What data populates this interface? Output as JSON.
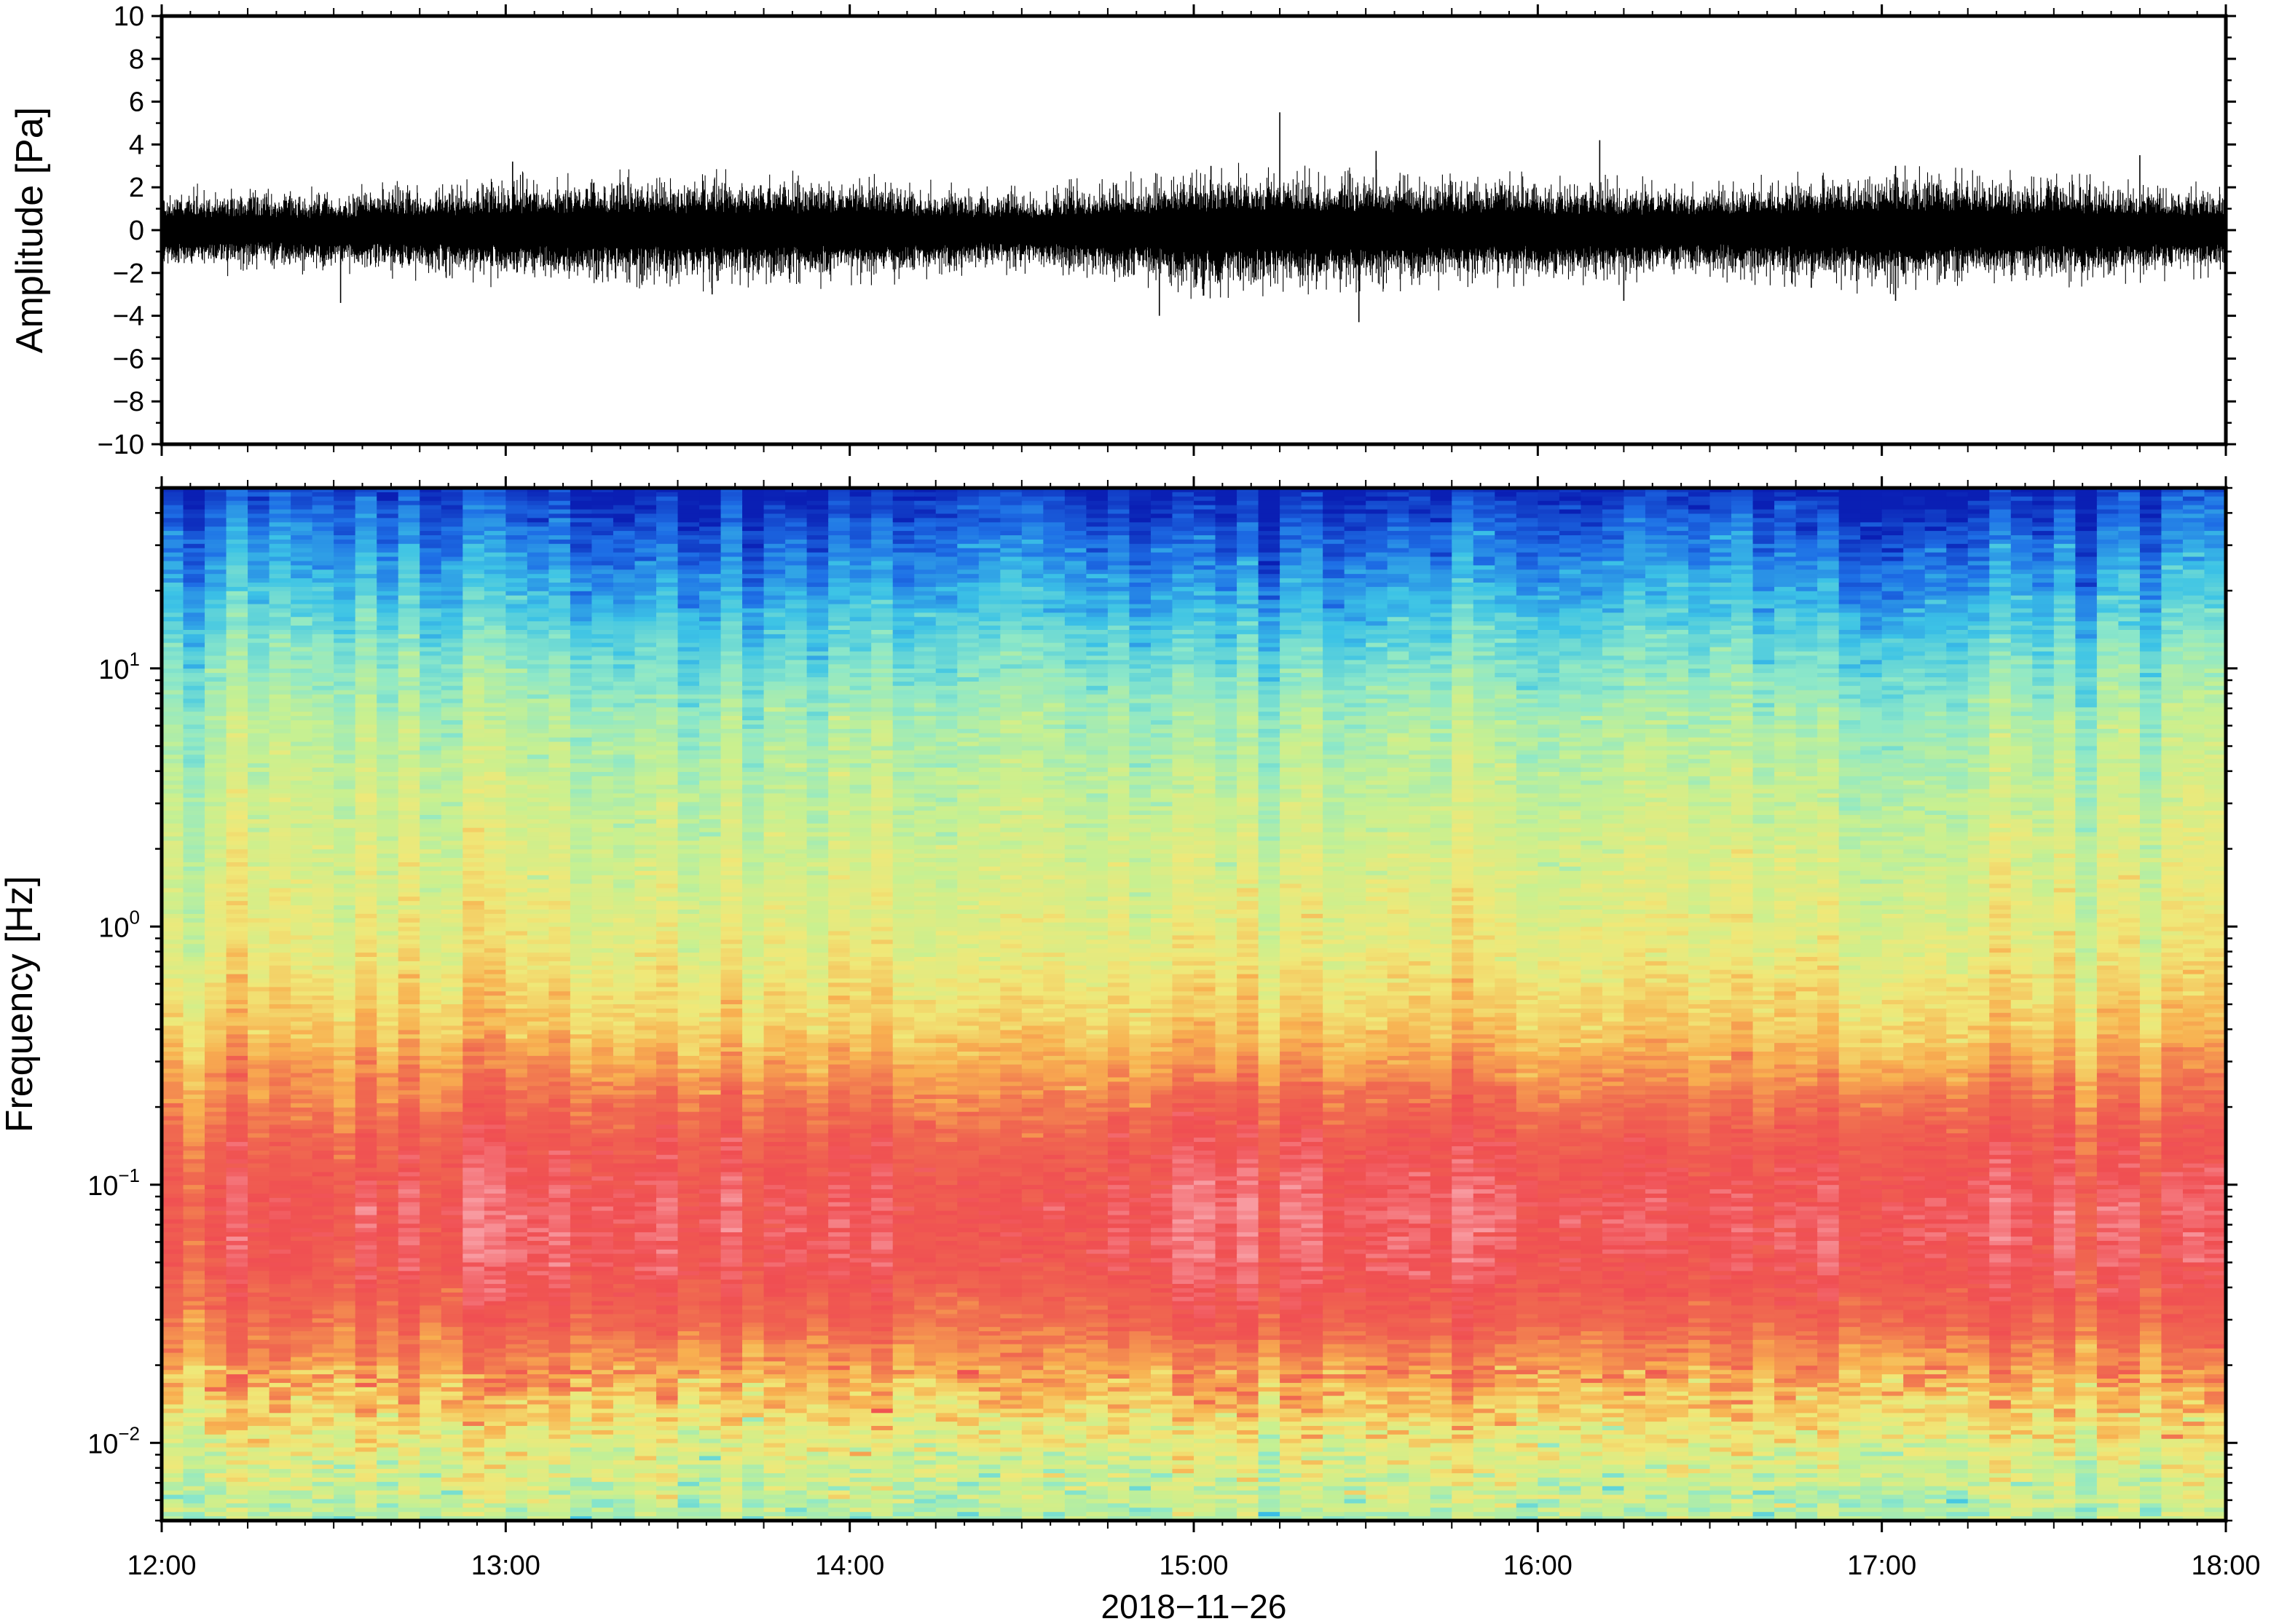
{
  "chart_data": [
    {
      "type": "line",
      "ylabel": "Amplitude [Pa]",
      "ylim": [
        -10,
        10
      ],
      "y_ticks": [
        "10",
        "8",
        "6",
        "4",
        "2",
        "0",
        "−2",
        "−4",
        "−6",
        "−8",
        "−10"
      ],
      "y_tick_values": [
        10,
        8,
        6,
        4,
        2,
        0,
        -2,
        -4,
        -6,
        -8,
        -10
      ],
      "xlim": [
        "12:00",
        "18:00"
      ],
      "series_color": "#000000",
      "envelope": {
        "x_hours": [
          12.0,
          12.5,
          13.0,
          13.5,
          14.0,
          14.5,
          15.0,
          15.5,
          16.0,
          16.5,
          17.0,
          17.5,
          18.0
        ],
        "half_range_pa": [
          1.3,
          1.2,
          1.6,
          1.7,
          1.6,
          1.2,
          1.9,
          1.7,
          1.6,
          1.4,
          1.8,
          1.6,
          1.3
        ]
      },
      "peaks": [
        {
          "x_hour": 15.25,
          "value": 5.5
        },
        {
          "x_hour": 15.48,
          "value": -4.3
        },
        {
          "x_hour": 15.53,
          "value": 3.7
        },
        {
          "x_hour": 16.18,
          "value": 4.2
        },
        {
          "x_hour": 16.25,
          "value": -3.3
        },
        {
          "x_hour": 13.02,
          "value": 3.2
        },
        {
          "x_hour": 12.52,
          "value": -3.4
        },
        {
          "x_hour": 14.9,
          "value": -4.0
        },
        {
          "x_hour": 15.05,
          "value": 3.0
        },
        {
          "x_hour": 17.04,
          "value": 3.0
        },
        {
          "x_hour": 17.04,
          "value": -3.3
        },
        {
          "x_hour": 17.75,
          "value": 3.5
        },
        {
          "x_hour": 13.6,
          "value": -3.0
        }
      ]
    },
    {
      "type": "heatmap",
      "xlabel": "2018−11−26",
      "ylabel": "Frequency [Hz]",
      "y_scale": "log",
      "ylim": [
        0.005,
        50
      ],
      "y_ticks": [
        {
          "value": 10,
          "base": "10",
          "exp": "1"
        },
        {
          "value": 1,
          "base": "10",
          "exp": "0"
        },
        {
          "value": 0.1,
          "base": "10",
          "exp": "−1"
        },
        {
          "value": 0.01,
          "base": "10",
          "exp": "−2"
        }
      ],
      "x_ticks": [
        "12:00",
        "13:00",
        "14:00",
        "15:00",
        "16:00",
        "17:00",
        "18:00"
      ],
      "x_tick_hours": [
        12,
        13,
        14,
        15,
        16,
        17,
        18
      ],
      "colormap": [
        "#0a1fb4",
        "#1e6fe6",
        "#3cc3e6",
        "#8ee8c8",
        "#c8f090",
        "#f0e878",
        "#f8b050",
        "#f06a50",
        "#f04e52",
        "#f89aa0"
      ],
      "dominant_color_by_frequency_hz": [
        {
          "freq": 40,
          "color": "#1a3fd0"
        },
        {
          "freq": 20,
          "color": "#2a8ae8"
        },
        {
          "freq": 10,
          "color": "#6ad8d0"
        },
        {
          "freq": 3,
          "color": "#c8ec8a"
        },
        {
          "freq": 1,
          "color": "#d8ec86"
        },
        {
          "freq": 0.4,
          "color": "#f4c060"
        },
        {
          "freq": 0.2,
          "color": "#f06a50"
        },
        {
          "freq": 0.07,
          "color": "#f26a74"
        },
        {
          "freq": 0.03,
          "color": "#f07060"
        },
        {
          "freq": 0.015,
          "color": "#f8b050"
        },
        {
          "freq": 0.007,
          "color": "#c8f0a0"
        }
      ]
    }
  ]
}
